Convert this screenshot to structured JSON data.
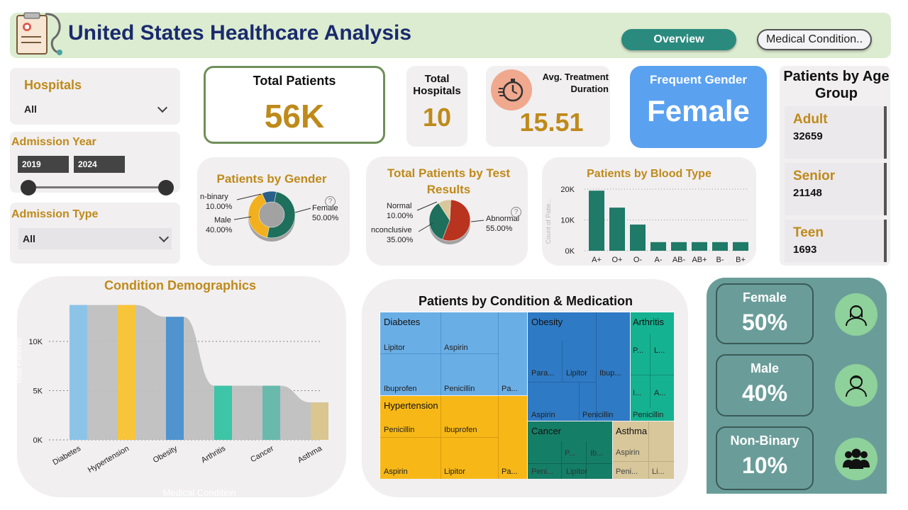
{
  "header": {
    "title": "United States Healthcare Analysis",
    "nav": {
      "overview": "Overview",
      "medical": "Medical Condition.."
    }
  },
  "slicers": {
    "hospitals": {
      "title": "Hospitals",
      "value": "All"
    },
    "admission_year": {
      "title": "Admission Year",
      "start": "2019",
      "end": "2024"
    },
    "admission_type": {
      "title": "Admission Type",
      "value": "All"
    }
  },
  "kpis": {
    "total_patients": {
      "label": "Total Patients",
      "value": "56K"
    },
    "total_hospitals": {
      "label": "Total Hospitals",
      "value": "10"
    },
    "avg_treatment": {
      "label": "Avg. Treatment Duration",
      "value": "15.51"
    },
    "frequent_gender": {
      "label": "Frequent Gender",
      "value": "Female"
    }
  },
  "age_group": {
    "title": "Patients by Age Group",
    "items": [
      {
        "name": "Adult",
        "value": "32659"
      },
      {
        "name": "Senior",
        "value": "21148"
      },
      {
        "name": "Teen",
        "value": "1693"
      }
    ]
  },
  "gender_donut": {
    "title": "Patients by Gender",
    "labels": {
      "nonbinary": "n-binary",
      "nonbinary_pct": "10.00%",
      "male": "Male",
      "male_pct": "40.00%",
      "female": "Female",
      "female_pct": "50.00%"
    }
  },
  "test_pie": {
    "title": "Total Patients by Test Results",
    "labels": {
      "normal": "Normal",
      "normal_pct": "10.00%",
      "inconclusive": "nconclusive",
      "inconclusive_pct": "35.00%",
      "abnormal": "Abnormal",
      "abnormal_pct": "55.00%"
    }
  },
  "gender_cards": [
    {
      "label": "Female",
      "value": "50%"
    },
    {
      "label": "Male",
      "value": "40%"
    },
    {
      "label": "Non-Binary",
      "value": "10%"
    }
  ],
  "treemap": {
    "title": "Patients by Condition & Medication",
    "diabetes": {
      "name": "Diabetes",
      "meds": [
        "Lipitor",
        "Aspirin",
        "Ibuprofen",
        "Penicillin",
        "Pa..."
      ]
    },
    "hypertension": {
      "name": "Hypertension",
      "meds": [
        "Penicillin",
        "Ibuprofen",
        "Aspirin",
        "Lipitor",
        "Pa..."
      ]
    },
    "obesity": {
      "name": "Obesity",
      "meds": [
        "Para...",
        "Lipitor",
        "Ibup...",
        "Aspirin",
        "Penicillin"
      ]
    },
    "arthritis": {
      "name": "Arthritis",
      "meds": [
        "P...",
        "L...",
        "I...",
        "A...",
        "Penicillin"
      ]
    },
    "cancer": {
      "name": "Cancer",
      "meds": [
        "P...",
        "Ib...",
        "Peni...",
        "Lipitor"
      ]
    },
    "asthma": {
      "name": "Asthma",
      "meds": [
        "Aspirin",
        "Peni...",
        "Li..."
      ]
    }
  },
  "chart_data": [
    {
      "type": "bar",
      "title": "Patients by Blood Type",
      "ylabel": "Count of Patie...",
      "categories": [
        "A+",
        "O+",
        "O-",
        "A-",
        "AB-",
        "AB+",
        "B-",
        "B+"
      ],
      "values": [
        19500,
        14000,
        8500,
        2800,
        2800,
        2800,
        2800,
        2800
      ],
      "ylim": [
        0,
        20000
      ],
      "ticks": [
        "0K",
        "10K",
        "20K"
      ],
      "colors": {
        "bar": "#1f7a68"
      }
    },
    {
      "type": "bar",
      "title": "Condition Demographics",
      "xlabel": "Medical Condition",
      "ylabel": "Total Patients",
      "categories": [
        "Diabetes",
        "Hypertension",
        "Obesity",
        "Arthritis",
        "Cancer",
        "Asthma"
      ],
      "values": [
        13700,
        13700,
        12500,
        5500,
        5500,
        3800
      ],
      "ylim": [
        0,
        15000
      ],
      "ticks": [
        "0K",
        "5K",
        "10K"
      ],
      "colors": {
        "series": [
          "#8cc4e8",
          "#f7c43a",
          "#4f93cf",
          "#3ec4a6",
          "#6ab9ad",
          "#d9c690"
        ],
        "ribbon": "#bcbcbc"
      }
    },
    {
      "type": "pie",
      "title": "Patients by Gender",
      "categories": [
        "Female",
        "Male",
        "n-binary"
      ],
      "values": [
        50,
        40,
        10
      ],
      "colors": [
        "#1e6f5c",
        "#f2b01e",
        "#2a5f8a"
      ]
    },
    {
      "type": "pie",
      "title": "Total Patients by Test Results",
      "categories": [
        "Abnormal",
        "nconclusive",
        "Normal"
      ],
      "values": [
        55,
        35,
        10
      ],
      "colors": [
        "#b8341f",
        "#1e6f5c",
        "#d8c79a"
      ]
    }
  ]
}
